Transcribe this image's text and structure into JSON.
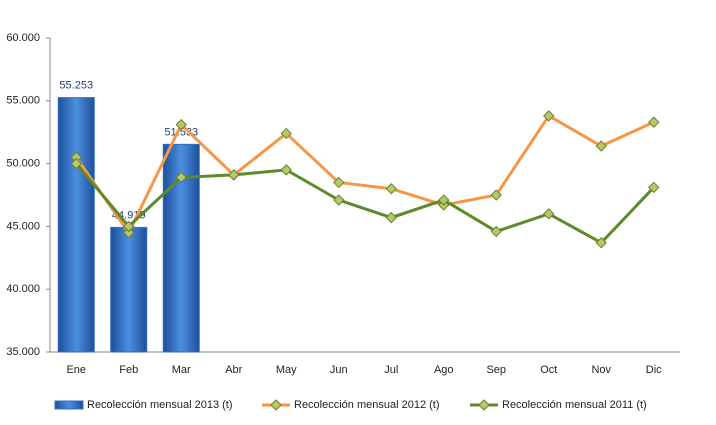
{
  "chart_data": {
    "type": "bar",
    "categories": [
      "Ene",
      "Feb",
      "Mar",
      "Abr",
      "May",
      "Jun",
      "Jul",
      "Ago",
      "Sep",
      "Oct",
      "Nov",
      "Dic"
    ],
    "series": [
      {
        "name": "Recolección mensual 2013 (t)",
        "type": "bar",
        "color": "#2f6fbf",
        "values": [
          55253,
          44919,
          51533,
          null,
          null,
          null,
          null,
          null,
          null,
          null,
          null,
          null
        ],
        "value_labels": [
          "55.253",
          "44.919",
          "51.533",
          null,
          null,
          null,
          null,
          null,
          null,
          null,
          null,
          null
        ]
      },
      {
        "name": "Recolección mensual 2012 (t)",
        "type": "line",
        "color": "#f79646",
        "values": [
          50500,
          44500,
          53100,
          49100,
          52400,
          48500,
          48000,
          46700,
          47500,
          53800,
          51400,
          53300
        ]
      },
      {
        "name": "Recolección mensual 2011 (t)",
        "type": "line",
        "color": "#5e8a2a",
        "values": [
          50000,
          45000,
          48900,
          49100,
          49500,
          47100,
          45700,
          47100,
          44600,
          46000,
          43700,
          48100
        ]
      }
    ],
    "ylim": [
      35000,
      60000
    ],
    "yticks": [
      {
        "value": 35000,
        "label": "35.000"
      },
      {
        "value": 40000,
        "label": "40.000"
      },
      {
        "value": 45000,
        "label": "45.000"
      },
      {
        "value": 50000,
        "label": "50.000"
      },
      {
        "value": 55000,
        "label": "55.000"
      },
      {
        "value": 60000,
        "label": "60.000"
      }
    ],
    "grid": false,
    "legend": "bottom"
  }
}
